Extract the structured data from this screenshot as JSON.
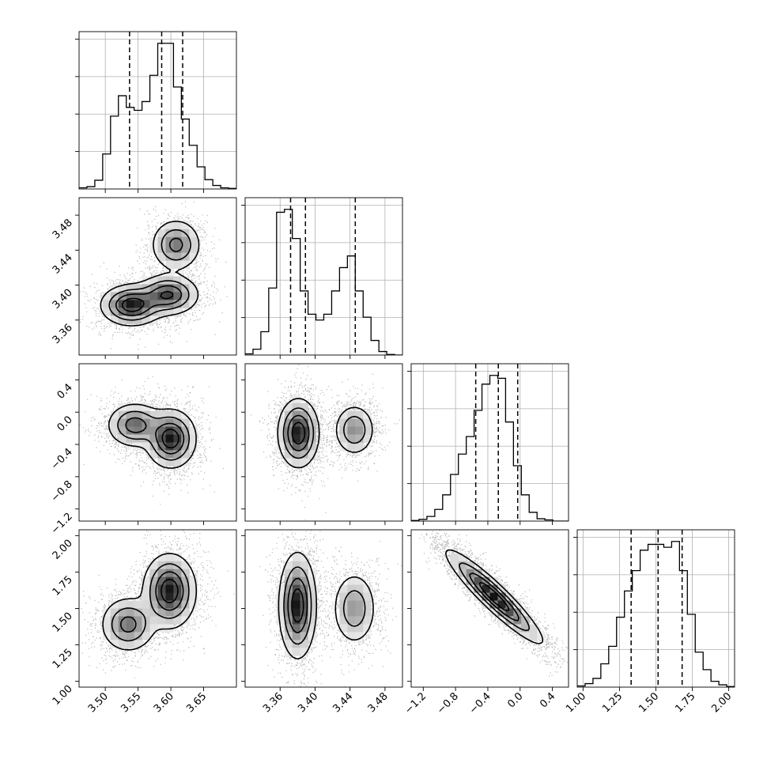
{
  "chart_data": {
    "type": "corner",
    "grid": true,
    "parameters": [
      {
        "name": "",
        "range": [
          3.46,
          3.7
        ],
        "ticks": [
          3.5,
          3.55,
          3.6,
          3.65
        ],
        "tick_labels": [
          "3.50",
          "3.55",
          "3.60",
          "3.65"
        ]
      },
      {
        "name": "",
        "range": [
          3.32,
          3.5
        ],
        "ticks": [
          3.36,
          3.4,
          3.44,
          3.48
        ],
        "tick_labels": [
          "3.36",
          "3.40",
          "3.44",
          "3.48"
        ]
      },
      {
        "name": "",
        "range": [
          -1.35,
          0.6
        ],
        "ticks": [
          -1.2,
          -0.8,
          -0.4,
          0.0,
          0.4
        ],
        "tick_labels": [
          "−1.2",
          "−0.8",
          "−0.4",
          "0.0",
          "0.4"
        ]
      },
      {
        "name": "",
        "range": [
          0.96,
          2.04
        ],
        "ticks": [
          1.0,
          1.25,
          1.5,
          1.75,
          2.0
        ],
        "tick_labels": [
          "1.00",
          "1.25",
          "1.50",
          "1.75",
          "2.00"
        ]
      }
    ],
    "histograms": [
      {
        "bin_edges": [
          3.46,
          3.472,
          3.484,
          3.496,
          3.508,
          3.52,
          3.532,
          3.544,
          3.556,
          3.568,
          3.58,
          3.592,
          3.604,
          3.616,
          3.628,
          3.64,
          3.652,
          3.664,
          3.676,
          3.688,
          3.7
        ],
        "counts": [
          2,
          4,
          15,
          60,
          125,
          160,
          140,
          135,
          150,
          195,
          250,
          250,
          175,
          120,
          75,
          38,
          16,
          6,
          2,
          1
        ],
        "quantiles": [
          3.537,
          3.586,
          3.618
        ]
      },
      {
        "bin_edges": [
          3.32,
          3.329,
          3.338,
          3.347,
          3.356,
          3.365,
          3.374,
          3.383,
          3.392,
          3.401,
          3.41,
          3.419,
          3.428,
          3.437,
          3.446,
          3.455,
          3.464,
          3.473,
          3.482,
          3.491,
          3.5
        ],
        "counts": [
          2,
          10,
          40,
          115,
          245,
          250,
          200,
          110,
          70,
          60,
          70,
          110,
          150,
          170,
          110,
          65,
          25,
          6,
          1,
          0
        ],
        "quantiles": [
          3.372,
          3.389,
          3.446
        ]
      },
      {
        "bin_edges": [
          -1.35,
          -1.2525,
          -1.155,
          -1.0575,
          -0.96,
          -0.8625,
          -0.765,
          -0.6675,
          -0.57,
          -0.4725,
          -0.375,
          -0.2775,
          -0.18,
          -0.0825,
          0.015,
          0.1125,
          0.21,
          0.3075,
          0.405,
          0.5025,
          0.6
        ],
        "counts": [
          1,
          3,
          8,
          20,
          45,
          80,
          115,
          145,
          190,
          235,
          250,
          245,
          170,
          95,
          45,
          15,
          4,
          2,
          0,
          0
        ],
        "quantiles": [
          -0.55,
          -0.27,
          -0.03
        ]
      },
      {
        "bin_edges": [
          0.96,
          1.014,
          1.068,
          1.122,
          1.176,
          1.23,
          1.284,
          1.338,
          1.392,
          1.446,
          1.5,
          1.554,
          1.608,
          1.662,
          1.716,
          1.77,
          1.824,
          1.878,
          1.932,
          1.986,
          2.04
        ],
        "counts": [
          2,
          6,
          15,
          40,
          70,
          120,
          165,
          200,
          235,
          245,
          245,
          240,
          250,
          200,
          125,
          60,
          30,
          10,
          4,
          1
        ],
        "quantiles": [
          1.33,
          1.515,
          1.68
        ]
      }
    ],
    "joint": [
      {
        "x_param": 0,
        "y_param": 1,
        "modes": [
          {
            "x": 3.54,
            "y": 3.377,
            "sx": 0.022,
            "sy": 0.011,
            "w": 1.0
          },
          {
            "x": 3.596,
            "y": 3.389,
            "sx": 0.022,
            "sy": 0.011,
            "w": 0.85
          },
          {
            "x": 3.608,
            "y": 3.446,
            "sx": 0.018,
            "sy": 0.014,
            "w": 0.65
          }
        ]
      },
      {
        "x_param": 0,
        "y_param": 2,
        "modes": [
          {
            "x": 3.545,
            "y": -0.16,
            "sx": 0.02,
            "sy": 0.13,
            "w": 0.7
          },
          {
            "x": 3.6,
            "y": -0.33,
            "sx": 0.018,
            "sy": 0.17,
            "w": 1.0
          }
        ]
      },
      {
        "x_param": 1,
        "y_param": 2,
        "modes": [
          {
            "x": 3.381,
            "y": -0.26,
            "sx": 0.011,
            "sy": 0.2,
            "w": 1.0
          },
          {
            "x": 3.445,
            "y": -0.22,
            "sx": 0.011,
            "sy": 0.15,
            "w": 0.55
          }
        ]
      },
      {
        "x_param": 0,
        "y_param": 3,
        "modes": [
          {
            "x": 3.535,
            "y": 1.39,
            "sx": 0.02,
            "sy": 0.09,
            "w": 0.65
          },
          {
            "x": 3.598,
            "y": 1.62,
            "sx": 0.019,
            "sy": 0.12,
            "w": 1.0
          }
        ]
      },
      {
        "x_param": 1,
        "y_param": 3,
        "modes": [
          {
            "x": 3.38,
            "y": 1.52,
            "sx": 0.01,
            "sy": 0.17,
            "w": 1.0
          },
          {
            "x": 3.445,
            "y": 1.5,
            "sx": 0.012,
            "sy": 0.12,
            "w": 0.5
          }
        ]
      },
      {
        "x_param": 2,
        "y_param": 3,
        "modes": [
          {
            "x": -0.32,
            "y": 1.58,
            "sx": 0.28,
            "sy": 0.15,
            "w": 1.0,
            "rho": -0.93
          }
        ]
      }
    ]
  }
}
